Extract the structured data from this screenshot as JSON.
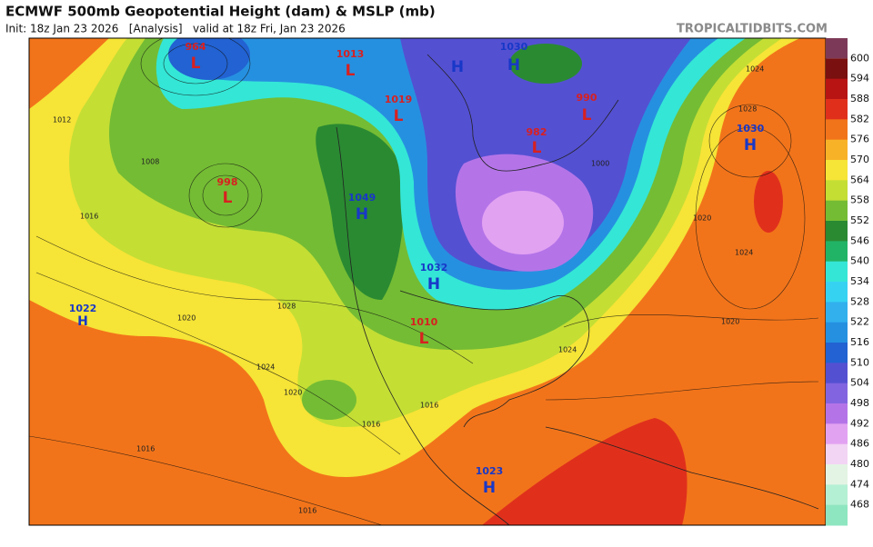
{
  "header": {
    "title": "ECMWF 500mb Geopotential Height (dam) & MSLP (mb)",
    "subtitle": "Init: 18z Jan 23 2026   [Analysis]   valid at 18z Fri, Jan 23 2026",
    "site": "TROPICALTIDBITS.COM"
  },
  "colorbar": [
    {
      "label": "600",
      "color": "#7a1010"
    },
    {
      "label": "594",
      "color": "#b81414"
    },
    {
      "label": "588",
      "color": "#e0301c"
    },
    {
      "label": "582",
      "color": "#f2741a"
    },
    {
      "label": "576",
      "color": "#f8b228"
    },
    {
      "label": "570",
      "color": "#f6e436"
    },
    {
      "label": "564",
      "color": "#c4de34"
    },
    {
      "label": "558",
      "color": "#74bc34"
    },
    {
      "label": "552",
      "color": "#2a8a32"
    },
    {
      "label": "546",
      "color": "#22b466"
    },
    {
      "label": "540",
      "color": "#34e6d6"
    },
    {
      "label": "534",
      "color": "#36d2f2"
    },
    {
      "label": "528",
      "color": "#32b0ee"
    },
    {
      "label": "522",
      "color": "#2690e0"
    },
    {
      "label": "516",
      "color": "#2262d2"
    },
    {
      "label": "510",
      "color": "#5450d2"
    },
    {
      "label": "504",
      "color": "#8264e0"
    },
    {
      "label": "498",
      "color": "#b474e8"
    },
    {
      "label": "492",
      "color": "#e2a2f2"
    },
    {
      "label": "486",
      "color": "#f2d4f4"
    },
    {
      "label": "480",
      "color": "#e4f4e4"
    },
    {
      "label": "474",
      "color": "#b4f0d4"
    },
    {
      "label": "468",
      "color": "#8ee6c0"
    }
  ],
  "centers": [
    {
      "letter": "L",
      "value": "964"
    },
    {
      "letter": "L",
      "value": "1013"
    },
    {
      "letter": "H"
    },
    {
      "letter": "H",
      "value": "1030"
    },
    {
      "letter": "L",
      "value": "1019"
    },
    {
      "letter": "L",
      "value": "990"
    },
    {
      "letter": "L",
      "value": "982"
    },
    {
      "letter": "H",
      "value": "1030"
    },
    {
      "letter": "L",
      "value": "998"
    },
    {
      "letter": "H",
      "value": "1049"
    },
    {
      "letter": "H",
      "value": "1032"
    },
    {
      "letter": "H",
      "value": "1022"
    },
    {
      "letter": "L",
      "value": "1010"
    },
    {
      "letter": "H",
      "value": "1023"
    }
  ],
  "isobar_labels": [
    "1012",
    "1008",
    "1016",
    "1020",
    "1024",
    "1028",
    "1020",
    "1016",
    "1024",
    "1020",
    "1016",
    "1024",
    "1020",
    "1028",
    "1024",
    "1000",
    "1016",
    "1016"
  ]
}
